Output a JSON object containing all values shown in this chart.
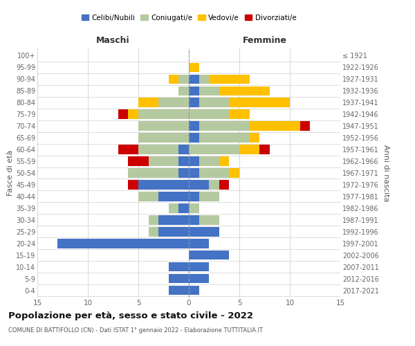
{
  "age_groups": [
    "0-4",
    "5-9",
    "10-14",
    "15-19",
    "20-24",
    "25-29",
    "30-34",
    "35-39",
    "40-44",
    "45-49",
    "50-54",
    "55-59",
    "60-64",
    "65-69",
    "70-74",
    "75-79",
    "80-84",
    "85-89",
    "90-94",
    "95-99",
    "100+"
  ],
  "birth_years": [
    "2017-2021",
    "2012-2016",
    "2007-2011",
    "2002-2006",
    "1997-2001",
    "1992-1996",
    "1987-1991",
    "1982-1986",
    "1977-1981",
    "1972-1976",
    "1967-1971",
    "1962-1966",
    "1957-1961",
    "1952-1956",
    "1947-1951",
    "1942-1946",
    "1937-1941",
    "1932-1936",
    "1927-1931",
    "1922-1926",
    "≤ 1921"
  ],
  "male": {
    "celibi": [
      2,
      2,
      2,
      0,
      13,
      3,
      3,
      1,
      3,
      5,
      1,
      1,
      1,
      0,
      0,
      0,
      0,
      0,
      0,
      0,
      0
    ],
    "coniugati": [
      0,
      0,
      0,
      0,
      0,
      1,
      1,
      1,
      2,
      0,
      5,
      3,
      4,
      5,
      5,
      5,
      3,
      1,
      1,
      0,
      0
    ],
    "vedovi": [
      0,
      0,
      0,
      0,
      0,
      0,
      0,
      0,
      0,
      0,
      0,
      0,
      0,
      0,
      0,
      1,
      2,
      0,
      1,
      0,
      0
    ],
    "divorziati": [
      0,
      0,
      0,
      0,
      0,
      0,
      0,
      0,
      0,
      1,
      0,
      2,
      2,
      0,
      0,
      1,
      0,
      0,
      0,
      0,
      0
    ]
  },
  "female": {
    "nubili": [
      1,
      2,
      2,
      4,
      2,
      3,
      1,
      0,
      1,
      2,
      1,
      1,
      0,
      1,
      1,
      0,
      1,
      1,
      1,
      0,
      0
    ],
    "coniugate": [
      0,
      0,
      0,
      0,
      0,
      0,
      2,
      1,
      2,
      1,
      3,
      2,
      5,
      5,
      5,
      4,
      3,
      2,
      1,
      0,
      0
    ],
    "vedove": [
      0,
      0,
      0,
      0,
      0,
      0,
      0,
      0,
      0,
      0,
      1,
      1,
      2,
      1,
      5,
      2,
      6,
      5,
      4,
      1,
      0
    ],
    "divorziate": [
      0,
      0,
      0,
      0,
      0,
      0,
      0,
      0,
      0,
      1,
      0,
      0,
      1,
      0,
      1,
      0,
      0,
      0,
      0,
      0,
      0
    ]
  },
  "colors": {
    "celibi": "#4472c4",
    "coniugati": "#b5c9a0",
    "vedovi": "#ffc000",
    "divorziati": "#cc0000"
  },
  "title": "Popolazione per età, sesso e stato civile - 2022",
  "subtitle": "COMUNE DI BATTIFOLLO (CN) - Dati ISTAT 1° gennaio 2022 - Elaborazione TUTTITALIA.IT",
  "xlabel_left": "Maschi",
  "xlabel_right": "Femmine",
  "ylabel_left": "Fasce di età",
  "ylabel_right": "Anni di nascita",
  "xlim": 15,
  "legend_labels": [
    "Celibi/Nubili",
    "Coniugati/e",
    "Vedovi/e",
    "Divorziati/e"
  ],
  "background_color": "#ffffff",
  "grid_color": "#d0d0d0"
}
